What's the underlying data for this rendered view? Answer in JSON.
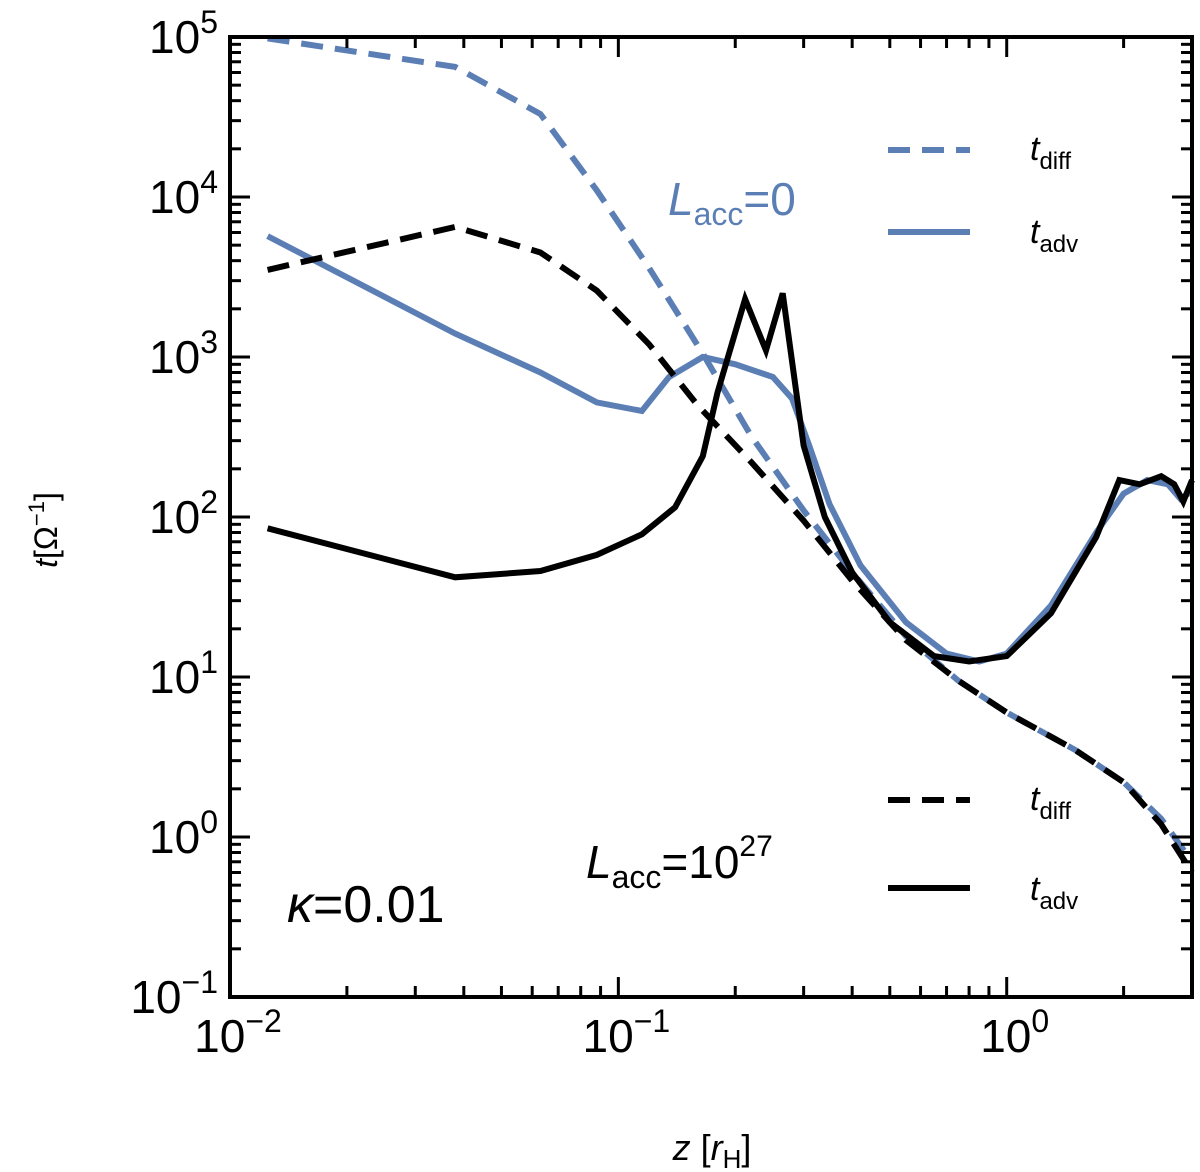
{
  "chart_data": {
    "type": "line",
    "title": "",
    "xlabel": {
      "var": "z",
      "open": "[",
      "sub_var": "r",
      "sub": "H",
      "close": "]"
    },
    "ylabel": {
      "var": "t",
      "unit": "[Ω",
      "exp": "−1",
      "close": "]"
    },
    "x_scale": "log",
    "y_scale": "log",
    "xlim": [
      0.01,
      3.0
    ],
    "ylim": [
      0.1,
      100000
    ],
    "x_ticks": [
      {
        "value": 0.01,
        "base": "10",
        "exp": "−2"
      },
      {
        "value": 0.1,
        "base": "10",
        "exp": "−1"
      },
      {
        "value": 1.0,
        "base": "10",
        "exp": "0"
      }
    ],
    "y_ticks": [
      {
        "value": 0.1,
        "base": "10",
        "exp": "−1"
      },
      {
        "value": 1,
        "base": "10",
        "exp": "0"
      },
      {
        "value": 10,
        "base": "10",
        "exp": "1"
      },
      {
        "value": 100,
        "base": "10",
        "exp": "2"
      },
      {
        "value": 1000,
        "base": "10",
        "exp": "3"
      },
      {
        "value": 10000,
        "base": "10",
        "exp": "4"
      },
      {
        "value": 100000,
        "base": "10",
        "exp": "5"
      }
    ],
    "colors": {
      "blue": "#5b7fb5",
      "black": "#000000"
    },
    "series": [
      {
        "name": "t_diff (L_acc=0)",
        "group": "Lacc0",
        "color": "#5b7fb5",
        "dash": "dashed",
        "x": [
          0.0125,
          0.038,
          0.063,
          0.088,
          0.12,
          0.165,
          0.22,
          0.3,
          0.4,
          0.55,
          0.75,
          1.0,
          1.5,
          2.0,
          2.5,
          3.0
        ],
        "y": [
          98000,
          65000,
          33000,
          11000,
          3600,
          1050,
          320,
          110,
          45,
          18,
          9.5,
          6,
          3.5,
          2.2,
          1.3,
          0.7
        ]
      },
      {
        "name": "t_adv (L_acc=0)",
        "group": "Lacc0",
        "color": "#5b7fb5",
        "dash": "solid",
        "x": [
          0.0125,
          0.038,
          0.063,
          0.088,
          0.115,
          0.135,
          0.165,
          0.2,
          0.25,
          0.28,
          0.31,
          0.35,
          0.42,
          0.55,
          0.7,
          0.85,
          1.0,
          1.3,
          1.7,
          2.0,
          2.3,
          2.6,
          2.8,
          3.0
        ],
        "y": [
          5700,
          1400,
          800,
          520,
          460,
          750,
          1000,
          900,
          750,
          550,
          280,
          120,
          50,
          22,
          14,
          12.5,
          14,
          28,
          80,
          140,
          170,
          160,
          130,
          145
        ]
      },
      {
        "name": "t_diff (L_acc=10^27)",
        "group": "Lacc27",
        "color": "#000000",
        "dash": "dashed",
        "x": [
          0.0125,
          0.038,
          0.063,
          0.088,
          0.12,
          0.16,
          0.22,
          0.3,
          0.4,
          0.55,
          0.75,
          1.0,
          1.5,
          2.0,
          2.5,
          3.0
        ],
        "y": [
          3500,
          6500,
          4500,
          2600,
          1200,
          500,
          220,
          95,
          40,
          17,
          9.5,
          6,
          3.5,
          2.2,
          1.2,
          0.6
        ]
      },
      {
        "name": "t_adv (L_acc=10^27)",
        "group": "Lacc27",
        "color": "#000000",
        "dash": "solid",
        "x": [
          0.0125,
          0.038,
          0.063,
          0.088,
          0.115,
          0.14,
          0.165,
          0.18,
          0.212,
          0.24,
          0.265,
          0.3,
          0.34,
          0.4,
          0.5,
          0.65,
          0.8,
          1.0,
          1.3,
          1.7,
          1.95,
          2.2,
          2.5,
          2.7,
          2.85,
          3.0
        ],
        "y": [
          85,
          42,
          46,
          58,
          78,
          115,
          240,
          600,
          2300,
          1100,
          2500,
          280,
          100,
          45,
          22,
          13.5,
          12.5,
          13.5,
          25,
          75,
          170,
          160,
          180,
          160,
          125,
          170
        ]
      }
    ],
    "annotations": {
      "kappa": {
        "symbol": "κ",
        "value": "=0.01"
      },
      "lacc0": {
        "L": "L",
        "sub": "acc",
        "rest": "=0"
      },
      "lacc27": {
        "L": "L",
        "sub": "acc",
        "rest": "=10",
        "exp": "27"
      }
    },
    "legend": {
      "top_right": [
        {
          "var": "t",
          "sub": "diff",
          "color": "#5b7fb5",
          "dash": "dashed"
        },
        {
          "var": "t",
          "sub": "adv",
          "color": "#5b7fb5",
          "dash": "solid"
        }
      ],
      "bottom_right": [
        {
          "var": "t",
          "sub": "diff",
          "color": "#000000",
          "dash": "dashed"
        },
        {
          "var": "t",
          "sub": "adv",
          "color": "#000000",
          "dash": "solid"
        }
      ]
    }
  }
}
